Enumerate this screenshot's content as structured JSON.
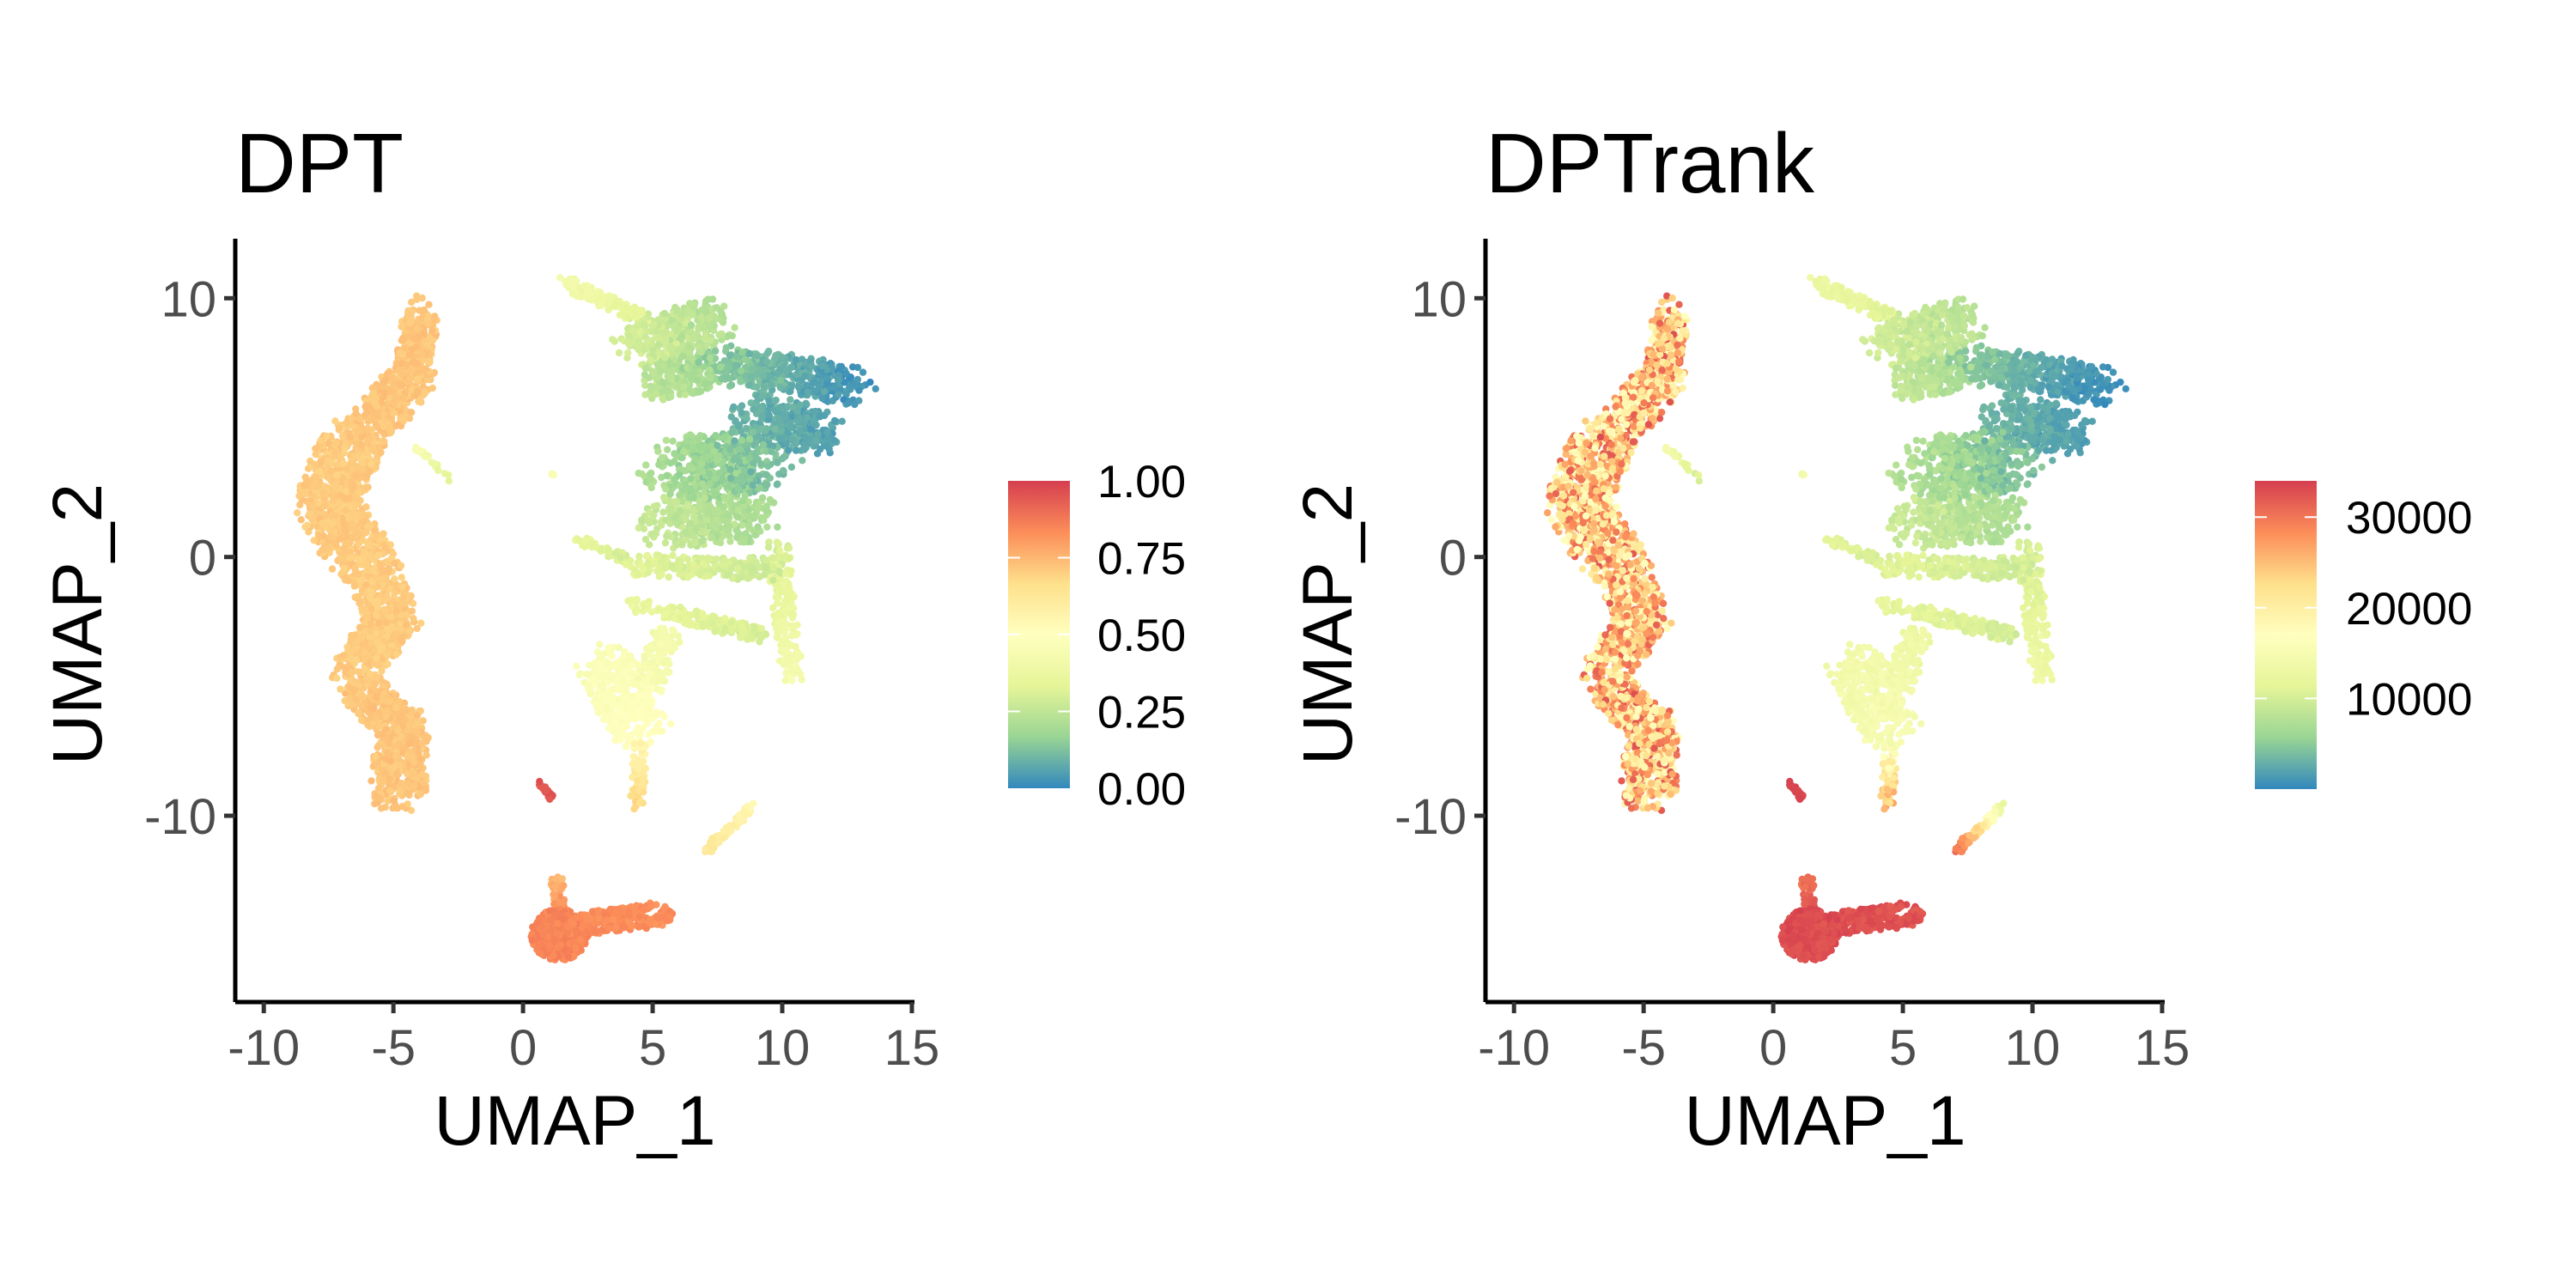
{
  "colors": {
    "palette": [
      "#3288BD",
      "#99D594",
      "#E6F598",
      "#FFFFBF",
      "#FEE08B",
      "#FC8D59",
      "#D53E4F"
    ],
    "axis": "#000000",
    "tick_label": "#4D4D4D"
  },
  "chart_data": [
    {
      "type": "scatter",
      "title": "DPT",
      "xlabel": "UMAP_1",
      "ylabel": "UMAP_2",
      "xlim": [
        -11.1,
        15.1
      ],
      "ylim": [
        -17.2,
        12.3
      ],
      "x_ticks": [
        "-10",
        "-5",
        "0",
        "5",
        "10",
        "15"
      ],
      "x_tick_values": [
        -10,
        -5,
        0,
        5,
        10,
        15
      ],
      "y_ticks": [
        "10",
        "0",
        "-10"
      ],
      "y_tick_values": [
        10,
        0,
        -10
      ],
      "color_variable": "dpt",
      "legend": {
        "placement": "right",
        "range": [
          0,
          1
        ],
        "ticks": [
          "1.00",
          "0.75",
          "0.50",
          "0.25",
          "0.00"
        ],
        "tick_values": [
          1,
          0.75,
          0.5,
          0.25,
          0
        ]
      },
      "grid": false
    },
    {
      "type": "scatter",
      "title": "DPTrank",
      "xlabel": "UMAP_1",
      "ylabel": "UMAP_2",
      "xlim": [
        -11.1,
        15.1
      ],
      "ylim": [
        -17.2,
        12.3
      ],
      "x_ticks": [
        "-10",
        "-5",
        "0",
        "5",
        "10",
        "15"
      ],
      "x_tick_values": [
        -10,
        -5,
        0,
        5,
        10,
        15
      ],
      "y_ticks": [
        "10",
        "0",
        "-10"
      ],
      "y_tick_values": [
        10,
        0,
        -10
      ],
      "color_variable": "rank",
      "legend": {
        "placement": "right",
        "range": [
          1,
          34000
        ],
        "ticks": [
          "30000",
          "20000",
          "10000"
        ],
        "tick_values": [
          30000,
          20000,
          10000
        ]
      },
      "grid": false
    }
  ],
  "cell_groups": [
    {
      "from": [
        -3.9,
        9.6
      ],
      "to": [
        -4.3,
        7.0
      ],
      "spread": 0.7,
      "n": 250,
      "dpt": [
        0.72,
        0.72
      ],
      "rank": [
        25000,
        25000
      ],
      "rank_spread": 8000
    },
    {
      "from": [
        -4.3,
        7.0
      ],
      "to": [
        -6.2,
        4.5
      ],
      "spread": 1.0,
      "n": 300,
      "dpt": [
        0.72,
        0.72
      ],
      "rank": [
        25000,
        25000
      ],
      "rank_spread": 8000
    },
    {
      "from": [
        -6.5,
        4.5
      ],
      "to": [
        -7.6,
        2.2
      ],
      "spread": 1.3,
      "n": 400,
      "dpt": [
        0.71,
        0.71
      ],
      "rank": [
        24000,
        24000
      ],
      "rank_spread": 8000
    },
    {
      "from": [
        -7.6,
        2.2
      ],
      "to": [
        -6.3,
        0.0
      ],
      "spread": 1.3,
      "n": 350,
      "dpt": [
        0.71,
        0.71
      ],
      "rank": [
        24000,
        24000
      ],
      "rank_spread": 8000
    },
    {
      "from": [
        -6.0,
        0.0
      ],
      "to": [
        -5.0,
        -2.5
      ],
      "spread": 1.1,
      "n": 300,
      "dpt": [
        0.71,
        0.71
      ],
      "rank": [
        24000,
        24000
      ],
      "rank_spread": 8000
    },
    {
      "from": [
        -5.0,
        -2.5
      ],
      "to": [
        -6.6,
        -4.5
      ],
      "spread": 1.0,
      "n": 300,
      "dpt": [
        0.71,
        0.71
      ],
      "rank": [
        24000,
        24000
      ],
      "rank_spread": 8000
    },
    {
      "from": [
        -6.3,
        -5.0
      ],
      "to": [
        -4.6,
        -6.8
      ],
      "spread": 0.9,
      "n": 250,
      "dpt": [
        0.72,
        0.72
      ],
      "rank": [
        25000,
        25000
      ],
      "rank_spread": 8000
    },
    {
      "from": [
        -4.6,
        -6.5
      ],
      "to": [
        -4.8,
        -9.2
      ],
      "spread": 1.1,
      "n": 350,
      "dpt": [
        0.72,
        0.72
      ],
      "rank": [
        25000,
        25000
      ],
      "rank_spread": 8000
    },
    {
      "from": [
        1.6,
        10.6
      ],
      "to": [
        4.6,
        9.2
      ],
      "spread": 0.35,
      "n": 120,
      "dpt": [
        0.42,
        0.33
      ],
      "rank": [
        13000,
        11000
      ],
      "rank_spread": 800
    },
    {
      "from": [
        4.5,
        8.3
      ],
      "to": [
        7.3,
        9.0
      ],
      "spread": 1.1,
      "n": 350,
      "dpt": [
        0.3,
        0.22
      ],
      "rank": [
        10000,
        8000
      ],
      "rank_spread": 800
    },
    {
      "from": [
        5.3,
        6.8
      ],
      "to": [
        7.0,
        7.2
      ],
      "spread": 0.9,
      "n": 200,
      "dpt": [
        0.25,
        0.18
      ],
      "rank": [
        9000,
        6500
      ],
      "rank_spread": 800
    },
    {
      "from": [
        7.5,
        7.5
      ],
      "to": [
        12.8,
        6.6
      ],
      "spread": 0.9,
      "n": 400,
      "dpt": [
        0.15,
        0.02
      ],
      "rank": [
        5000,
        300
      ],
      "rank_spread": 500
    },
    {
      "from": [
        8.8,
        5.5
      ],
      "to": [
        11.5,
        4.8
      ],
      "spread": 1.1,
      "n": 300,
      "dpt": [
        0.1,
        0.05
      ],
      "rank": [
        3500,
        1500
      ],
      "rank_spread": 500
    },
    {
      "from": [
        5.8,
        3.3
      ],
      "to": [
        9.5,
        3.8
      ],
      "spread": 1.5,
      "n": 500,
      "dpt": [
        0.22,
        0.1
      ],
      "rank": [
        8000,
        3500
      ],
      "rank_spread": 800
    },
    {
      "from": [
        5.2,
        1.3
      ],
      "to": [
        9.0,
        1.5
      ],
      "spread": 1.1,
      "n": 350,
      "dpt": [
        0.27,
        0.2
      ],
      "rank": [
        9500,
        7000
      ],
      "rank_spread": 800
    },
    {
      "from": [
        4.3,
        -0.3
      ],
      "to": [
        9.8,
        -0.5
      ],
      "spread": 0.5,
      "n": 250,
      "dpt": [
        0.33,
        0.27
      ],
      "rank": [
        11000,
        9500
      ],
      "rank_spread": 800
    },
    {
      "from": [
        4.2,
        -1.8
      ],
      "to": [
        9.2,
        -3.0
      ],
      "spread": 0.35,
      "n": 180,
      "dpt": [
        0.36,
        0.3
      ],
      "rank": [
        12000,
        10000
      ],
      "rank_spread": 800
    },
    {
      "from": [
        9.8,
        0.5
      ],
      "to": [
        10.4,
        -4.8
      ],
      "spread": 0.45,
      "n": 180,
      "dpt": [
        0.3,
        0.44
      ],
      "rank": [
        10000,
        13500
      ],
      "rank_spread": 800
    },
    {
      "from": [
        2.1,
        0.7
      ],
      "to": [
        4.0,
        -0.1
      ],
      "spread": 0.2,
      "n": 50,
      "dpt": [
        0.35,
        0.3
      ],
      "rank": [
        11500,
        10000
      ],
      "rank_spread": 500
    },
    {
      "from": [
        3.2,
        -4.3
      ],
      "to": [
        4.6,
        -6.6
      ],
      "spread": 1.2,
      "n": 350,
      "dpt": [
        0.46,
        0.5
      ],
      "rank": [
        14000,
        15000
      ],
      "rank_spread": 800
    },
    {
      "from": [
        5.6,
        -3.0
      ],
      "to": [
        4.8,
        -5.0
      ],
      "spread": 0.6,
      "n": 120,
      "dpt": [
        0.42,
        0.45
      ],
      "rank": [
        13000,
        14000
      ],
      "rank_spread": 800
    },
    {
      "from": [
        4.5,
        -7.2
      ],
      "to": [
        4.4,
        -9.6
      ],
      "spread": 0.3,
      "n": 80,
      "dpt": [
        0.55,
        0.68
      ],
      "rank": [
        16000,
        26000
      ],
      "rank_spread": 3000
    },
    {
      "from": [
        1.4,
        -14.6
      ],
      "to": [
        1.4,
        -14.6
      ],
      "spread": 1.1,
      "n": 500,
      "dpt": [
        0.85,
        0.85
      ],
      "rank": [
        33000,
        33000
      ],
      "rank_spread": 800
    },
    {
      "from": [
        1.8,
        -14.3
      ],
      "to": [
        5.3,
        -13.8
      ],
      "spread": 0.55,
      "n": 300,
      "dpt": [
        0.84,
        0.83
      ],
      "rank": [
        33000,
        32500
      ],
      "rank_spread": 800
    },
    {
      "from": [
        1.3,
        -12.5
      ],
      "to": [
        1.4,
        -13.5
      ],
      "spread": 0.25,
      "n": 40,
      "dpt": [
        0.75,
        0.82
      ],
      "rank": [
        30000,
        32500
      ],
      "rank_spread": 800
    },
    {
      "from": [
        0.6,
        -8.7
      ],
      "to": [
        1.1,
        -9.3
      ],
      "spread": 0.1,
      "n": 30,
      "dpt": [
        0.95,
        0.95
      ],
      "rank": [
        33500,
        33500
      ],
      "rank_spread": 300
    },
    {
      "from": [
        7.1,
        -11.3
      ],
      "to": [
        8.9,
        -9.6
      ],
      "spread": 0.2,
      "n": 60,
      "dpt": [
        0.62,
        0.55
      ],
      "rank": [
        30000,
        12000
      ],
      "rank_spread": 1000
    },
    {
      "from": [
        -4.1,
        4.2
      ],
      "to": [
        -2.7,
        2.9
      ],
      "spread": 0.1,
      "n": 20,
      "dpt": [
        0.45,
        0.3
      ],
      "rank": [
        14000,
        10000
      ],
      "rank_spread": 800
    },
    {
      "from": [
        1.15,
        3.2
      ],
      "to": [
        1.15,
        3.2
      ],
      "spread": 0.05,
      "n": 4,
      "dpt": [
        0.45,
        0.45
      ],
      "rank": [
        14000,
        14000
      ],
      "rank_spread": 300
    }
  ]
}
